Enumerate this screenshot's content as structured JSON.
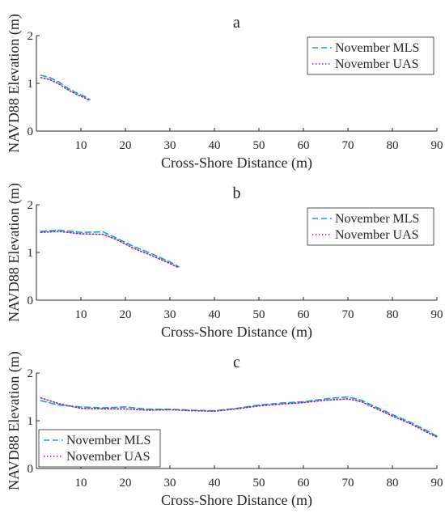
{
  "chart_data": [
    {
      "type": "line",
      "title": "a",
      "xlabel": "Cross-Shore Distance (m)",
      "ylabel": "NAVD88 Elevation (m)",
      "xlim": [
        0,
        90
      ],
      "ylim": [
        0,
        2
      ],
      "xticks": [
        "10",
        "20",
        "30",
        "40",
        "50",
        "60",
        "70",
        "80",
        "90"
      ],
      "yticks": [
        "0",
        "1",
        "2"
      ],
      "legend_position": "top-right",
      "series": [
        {
          "name": "November MLS",
          "style": "dashed",
          "color": "#1f9bd6",
          "x": [
            1,
            3,
            5,
            7,
            9,
            11,
            12
          ],
          "y": [
            1.17,
            1.12,
            1.03,
            0.9,
            0.8,
            0.72,
            0.66
          ]
        },
        {
          "name": "November UAS",
          "style": "dotted",
          "color": "#8b2aa0",
          "x": [
            1,
            3,
            5,
            7,
            9,
            11,
            12
          ],
          "y": [
            1.12,
            1.08,
            0.99,
            0.87,
            0.77,
            0.69,
            0.64
          ]
        }
      ]
    },
    {
      "type": "line",
      "title": "b",
      "xlabel": "Cross-Shore Distance (m)",
      "ylabel": "NAVD88 Elevation (m)",
      "xlim": [
        0,
        90
      ],
      "ylim": [
        0,
        2
      ],
      "xticks": [
        "10",
        "20",
        "30",
        "40",
        "50",
        "60",
        "70",
        "80",
        "90"
      ],
      "yticks": [
        "0",
        "1",
        "2"
      ],
      "legend_position": "top-right",
      "series": [
        {
          "name": "November MLS",
          "style": "dashed",
          "color": "#1f9bd6",
          "x": [
            1,
            5,
            10,
            15,
            18,
            22,
            26,
            30,
            32
          ],
          "y": [
            1.44,
            1.47,
            1.42,
            1.43,
            1.3,
            1.12,
            0.97,
            0.8,
            0.7
          ]
        },
        {
          "name": "November UAS",
          "style": "dotted",
          "color": "#8b2aa0",
          "x": [
            1,
            5,
            10,
            15,
            18,
            22,
            26,
            30,
            32
          ],
          "y": [
            1.42,
            1.44,
            1.39,
            1.38,
            1.27,
            1.08,
            0.93,
            0.77,
            0.68
          ]
        }
      ]
    },
    {
      "type": "line",
      "title": "c",
      "xlabel": "Cross-Shore Distance (m)",
      "ylabel": "NAVD88 Elevation (m)",
      "xlim": [
        0,
        90
      ],
      "ylim": [
        0,
        2
      ],
      "xticks": [
        "10",
        "20",
        "30",
        "40",
        "50",
        "60",
        "70",
        "80",
        "90"
      ],
      "yticks": [
        "0",
        "1",
        "2"
      ],
      "legend_position": "bottom-left",
      "series": [
        {
          "name": "November MLS",
          "style": "dashed",
          "color": "#1f9bd6",
          "x": [
            1,
            5,
            10,
            15,
            20,
            25,
            30,
            35,
            40,
            45,
            50,
            55,
            60,
            65,
            70,
            73,
            76,
            80,
            84,
            88,
            90
          ],
          "y": [
            1.42,
            1.33,
            1.29,
            1.27,
            1.29,
            1.24,
            1.24,
            1.22,
            1.21,
            1.26,
            1.33,
            1.37,
            1.4,
            1.46,
            1.5,
            1.43,
            1.3,
            1.13,
            0.97,
            0.78,
            0.68
          ]
        },
        {
          "name": "November UAS",
          "style": "dotted",
          "color": "#8b2aa0",
          "x": [
            1,
            5,
            10,
            15,
            20,
            25,
            30,
            35,
            40,
            45,
            50,
            55,
            60,
            65,
            70,
            73,
            76,
            80,
            84,
            88,
            90
          ],
          "y": [
            1.48,
            1.36,
            1.26,
            1.25,
            1.25,
            1.22,
            1.23,
            1.21,
            1.2,
            1.25,
            1.31,
            1.35,
            1.38,
            1.43,
            1.46,
            1.4,
            1.27,
            1.1,
            0.94,
            0.75,
            0.66
          ]
        }
      ]
    }
  ]
}
